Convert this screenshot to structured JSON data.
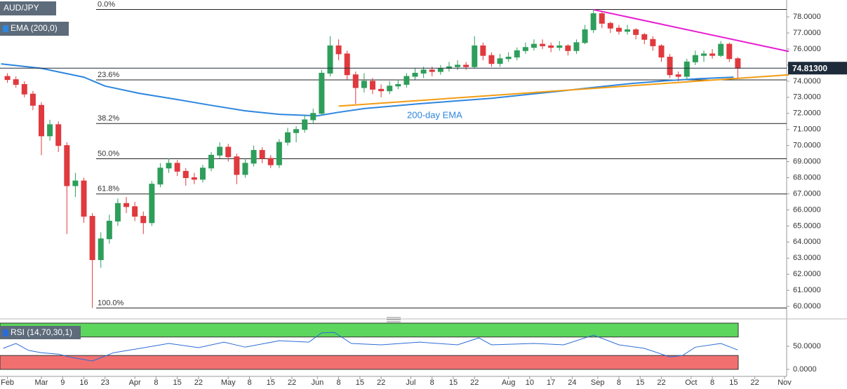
{
  "chart_data": {
    "type": "candlestick",
    "xlim": [
      10.25,
      195.5
    ],
    "ylim": [
      59.35,
      79.05
    ],
    "grid": false,
    "xticks": [
      {
        "value": 12,
        "label": "Feb"
      },
      {
        "value": 20,
        "label": "Mar"
      },
      {
        "value": 25,
        "label": "9"
      },
      {
        "value": 30,
        "label": "16"
      },
      {
        "value": 35,
        "label": "23"
      },
      {
        "value": 42,
        "label": "Apr"
      },
      {
        "value": 47,
        "label": "8"
      },
      {
        "value": 52,
        "label": "15"
      },
      {
        "value": 57,
        "label": "22"
      },
      {
        "value": 64,
        "label": "May"
      },
      {
        "value": 69,
        "label": "8"
      },
      {
        "value": 74,
        "label": "15"
      },
      {
        "value": 79,
        "label": "22"
      },
      {
        "value": 85,
        "label": "Jun"
      },
      {
        "value": 90,
        "label": "8"
      },
      {
        "value": 95,
        "label": "15"
      },
      {
        "value": 100,
        "label": "22"
      },
      {
        "value": 107,
        "label": "Jul"
      },
      {
        "value": 112,
        "label": "8"
      },
      {
        "value": 117,
        "label": "15"
      },
      {
        "value": 122,
        "label": "22"
      },
      {
        "value": 130,
        "label": "Aug"
      },
      {
        "value": 135,
        "label": "10"
      },
      {
        "value": 140,
        "label": "17"
      },
      {
        "value": 145,
        "label": "24"
      },
      {
        "value": 151,
        "label": "Sep"
      },
      {
        "value": 156,
        "label": "8"
      },
      {
        "value": 161,
        "label": "15"
      },
      {
        "value": 166,
        "label": "22"
      },
      {
        "value": 173,
        "label": "Oct"
      },
      {
        "value": 178,
        "label": "8"
      },
      {
        "value": 183,
        "label": "15"
      },
      {
        "value": 188,
        "label": "22"
      },
      {
        "value": 195,
        "label": "Nov"
      }
    ],
    "yticks": [
      {
        "value": 60,
        "label": "60.0000"
      },
      {
        "value": 61,
        "label": "61.0000"
      },
      {
        "value": 62,
        "label": "62.0000"
      },
      {
        "value": 63,
        "label": "63.0000"
      },
      {
        "value": 64,
        "label": "64.0000"
      },
      {
        "value": 65,
        "label": "65.0000"
      },
      {
        "value": 66,
        "label": "66.0000"
      },
      {
        "value": 67,
        "label": "67.0000"
      },
      {
        "value": 68,
        "label": "68.0000"
      },
      {
        "value": 69,
        "label": "69.0000"
      },
      {
        "value": 70,
        "label": "70.0000"
      },
      {
        "value": 71,
        "label": "71.0000"
      },
      {
        "value": 72,
        "label": "72.0000"
      },
      {
        "value": 73,
        "label": "73.0000"
      },
      {
        "value": 74,
        "label": "74.0000"
      },
      {
        "value": 75,
        "label": "75.0000"
      },
      {
        "value": 76,
        "label": "76.0000"
      },
      {
        "value": 77,
        "label": "77.0000"
      },
      {
        "value": 78,
        "label": "78.0000"
      }
    ],
    "series": [
      {
        "name": "AUD/JPY",
        "up_color": "#2e9e5b",
        "down_color": "#e0393e",
        "x": [
          12,
          14,
          16,
          18,
          20,
          22,
          24,
          26,
          28,
          30,
          32,
          34,
          36,
          38,
          40,
          42,
          44,
          46,
          48,
          50,
          52,
          54,
          56,
          58,
          60,
          62,
          64,
          66,
          68,
          70,
          72,
          74,
          76,
          78,
          80,
          82,
          84,
          86,
          88,
          90,
          92,
          94,
          96,
          98,
          100,
          102,
          104,
          106,
          108,
          110,
          112,
          114,
          116,
          118,
          120,
          122,
          124,
          126,
          128,
          130,
          132,
          134,
          136,
          138,
          140,
          142,
          144,
          146,
          148,
          150,
          152,
          154,
          156,
          158,
          160,
          162,
          164,
          166,
          168,
          170,
          172,
          174,
          176,
          178,
          180,
          182,
          184
        ],
        "open": [
          74.3,
          74.1,
          73.8,
          73.2,
          72.5,
          70.6,
          71.3,
          70.0,
          67.5,
          67.8,
          65.6,
          62.9,
          64.2,
          65.3,
          66.4,
          66.2,
          65.6,
          65.2,
          67.6,
          68.6,
          68.9,
          68.4,
          68.0,
          67.9,
          68.6,
          69.4,
          69.9,
          69.3,
          68.2,
          68.9,
          69.7,
          69.2,
          68.8,
          70.2,
          70.8,
          71.0,
          71.6,
          72.0,
          74.5,
          76.2,
          75.7,
          74.4,
          73.6,
          74.0,
          73.5,
          73.4,
          73.7,
          73.8,
          74.3,
          74.5,
          74.7,
          74.6,
          74.8,
          74.9,
          75.0,
          74.9,
          76.2,
          75.6,
          75.1,
          75.4,
          75.5,
          75.9,
          76.1,
          76.3,
          76.2,
          76.1,
          76.2,
          75.9,
          76.4,
          77.2,
          78.2,
          77.6,
          77.3,
          77.1,
          77.2,
          76.9,
          76.6,
          76.2,
          75.5,
          74.4,
          74.3,
          75.2,
          75.6,
          75.7,
          75.6,
          76.3,
          75.4
        ],
        "high": [
          74.5,
          74.3,
          74.0,
          73.4,
          72.7,
          71.6,
          71.5,
          70.2,
          68.3,
          68.0,
          65.8,
          64.6,
          65.7,
          66.7,
          66.8,
          66.5,
          65.9,
          67.8,
          68.9,
          69.2,
          69.1,
          68.6,
          68.3,
          68.8,
          69.6,
          70.2,
          70.1,
          69.5,
          69.2,
          70.0,
          69.9,
          69.4,
          70.4,
          71.1,
          71.2,
          71.9,
          72.3,
          74.7,
          76.8,
          76.6,
          75.9,
          74.6,
          74.5,
          74.2,
          73.8,
          74.0,
          74.1,
          74.5,
          74.8,
          74.9,
          74.9,
          75.0,
          75.2,
          75.3,
          75.2,
          76.8,
          76.4,
          75.8,
          75.7,
          75.8,
          76.1,
          76.4,
          76.6,
          76.6,
          76.4,
          76.5,
          76.3,
          76.6,
          77.5,
          78.46,
          78.3,
          77.7,
          77.5,
          77.5,
          77.3,
          77.0,
          76.8,
          76.3,
          75.7,
          74.6,
          75.4,
          75.9,
          75.9,
          76.0,
          76.5,
          76.4,
          75.5
        ],
        "low": [
          73.9,
          73.6,
          73.0,
          72.2,
          69.4,
          70.3,
          69.6,
          64.5,
          66.8,
          65.2,
          59.9,
          62.4,
          63.9,
          65.0,
          65.8,
          65.3,
          64.5,
          65.0,
          67.4,
          68.3,
          68.1,
          67.5,
          67.6,
          67.7,
          68.4,
          69.2,
          69.0,
          67.6,
          68.0,
          68.7,
          68.9,
          68.6,
          68.6,
          70.0,
          70.2,
          70.8,
          71.4,
          71.9,
          74.3,
          75.3,
          74.1,
          72.6,
          73.3,
          73.2,
          73.0,
          73.2,
          73.5,
          73.6,
          74.1,
          74.2,
          74.3,
          74.4,
          74.6,
          74.7,
          74.7,
          74.8,
          75.3,
          74.9,
          74.9,
          75.2,
          75.3,
          75.7,
          75.9,
          76.0,
          75.8,
          75.9,
          75.6,
          75.7,
          76.3,
          77.0,
          77.3,
          77.0,
          76.9,
          76.9,
          76.6,
          76.3,
          75.9,
          75.2,
          74.2,
          74.0,
          74.1,
          75.0,
          75.2,
          75.4,
          75.5,
          75.2,
          74.2
        ],
        "close": [
          74.1,
          73.8,
          73.2,
          72.5,
          70.6,
          71.3,
          70.0,
          67.5,
          67.8,
          65.6,
          62.9,
          64.2,
          65.3,
          66.4,
          66.2,
          65.6,
          65.2,
          67.6,
          68.6,
          68.9,
          68.4,
          68.0,
          67.9,
          68.6,
          69.4,
          69.9,
          69.3,
          68.2,
          68.9,
          69.7,
          69.2,
          68.8,
          70.2,
          70.8,
          71.0,
          71.6,
          72.0,
          74.5,
          76.2,
          75.7,
          74.4,
          73.6,
          74.0,
          73.5,
          73.4,
          73.7,
          73.8,
          74.3,
          74.5,
          74.7,
          74.6,
          74.8,
          74.9,
          75.0,
          74.9,
          76.2,
          75.6,
          75.1,
          75.4,
          75.5,
          75.9,
          76.1,
          76.3,
          76.2,
          76.1,
          76.2,
          75.9,
          76.4,
          77.2,
          78.2,
          77.6,
          77.3,
          77.1,
          77.2,
          76.9,
          76.6,
          76.2,
          75.5,
          74.4,
          74.3,
          75.2,
          75.6,
          75.7,
          75.6,
          76.3,
          75.4,
          74.81
        ]
      }
    ],
    "ema": {
      "name": "EMA (200,0)",
      "color": "#2e86de",
      "x": [
        10.5,
        20,
        30,
        35,
        43,
        52,
        60,
        68,
        76,
        85,
        90,
        96,
        109,
        126,
        142,
        151,
        159,
        167,
        175,
        183
      ],
      "values": [
        75.08,
        74.8,
        74.25,
        73.7,
        73.25,
        72.86,
        72.5,
        72.16,
        71.94,
        71.85,
        72.07,
        72.3,
        72.6,
        72.94,
        73.38,
        73.64,
        73.86,
        74.03,
        74.16,
        74.25
      ]
    },
    "annotation": "200-day EMA",
    "trendlines": [
      {
        "color": "#e61ed2",
        "x": [
          150,
          196
        ],
        "values": [
          78.45,
          75.85
        ]
      },
      {
        "color": "#f39c12",
        "x": [
          90,
          196
        ],
        "values": [
          72.45,
          74.4
        ]
      }
    ],
    "fib_levels": [
      {
        "ratio": "0.0%",
        "price": 78.46
      },
      {
        "ratio": "23.6%",
        "price": 74.08
      },
      {
        "ratio": "38.2%",
        "price": 71.37
      },
      {
        "ratio": "50.0%",
        "price": 69.18
      },
      {
        "ratio": "61.8%",
        "price": 66.99
      },
      {
        "ratio": "100.0%",
        "price": 59.9
      }
    ],
    "last_price": {
      "value": 74.813,
      "label": "74.81300"
    },
    "rsi": {
      "name": "RSI (14,70,30,1)",
      "color": "#2b6cd6",
      "ylim": [
        0,
        100
      ],
      "yticks": [
        {
          "value": 50,
          "label": "50.0000"
        },
        {
          "value": 0,
          "label": "0.0000"
        }
      ],
      "overbought": 70,
      "oversold": 30,
      "upper": 100,
      "lower": 0,
      "overbought_color": "#5cd65c",
      "oversold_color": "#f07070",
      "x": [
        11,
        14,
        17,
        20,
        24,
        27,
        32,
        37,
        43,
        50,
        57,
        63,
        68,
        76,
        83,
        86,
        89,
        93,
        100,
        109,
        118,
        123,
        126,
        136,
        143,
        150,
        156,
        162,
        168,
        171,
        174,
        180,
        184
      ],
      "values": [
        45.5,
        56,
        41,
        36,
        33,
        26,
        18,
        36,
        45,
        56,
        47,
        59,
        48,
        62,
        59,
        79,
        80,
        56,
        53,
        59,
        53,
        68,
        53,
        56,
        53,
        74,
        53,
        45.5,
        27,
        30,
        48,
        56,
        42
      ]
    }
  }
}
